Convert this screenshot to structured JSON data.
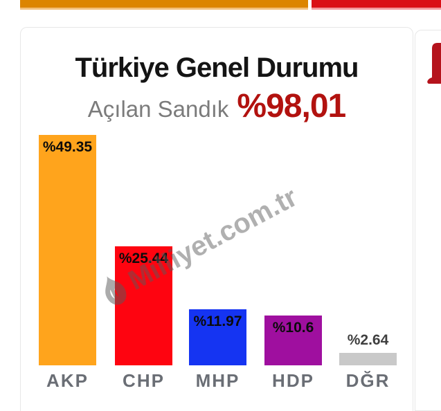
{
  "top_strip": {
    "orange_color": "#DC8500",
    "red_color": "#DA0F16"
  },
  "card": {
    "title": "Türkiye Genel Durumu",
    "subtitle_label": "Açılan Sandık",
    "subtitle_value": "%98,01",
    "subtitle_value_color": "#B2120F"
  },
  "watermark": {
    "text": "Milliyet.com.tr",
    "icon": "flame-icon",
    "color": "#5A5A5A"
  },
  "side_card": {
    "logo": "partial-red-logo",
    "logo_color": "#B5131C"
  },
  "chart_data": {
    "type": "bar",
    "title": "Türkiye Genel Durumu",
    "subtitle": "Açılan Sandık %98,01",
    "categories": [
      "AKP",
      "CHP",
      "MHP",
      "HDP",
      "DĞR"
    ],
    "values": [
      49.35,
      25.44,
      11.97,
      10.6,
      2.64
    ],
    "value_labels": [
      "%49.35",
      "%25.44",
      "%11.97",
      "%10.6",
      "%2.64"
    ],
    "colors": [
      "#FFA41C",
      "#FE0410",
      "#1534F2",
      "#9F0F9F",
      "#C9C9C9"
    ],
    "ylim": [
      0,
      52
    ],
    "grid": false,
    "legend": false,
    "value_label_position": "inside-top (above bar when value < 5)"
  }
}
